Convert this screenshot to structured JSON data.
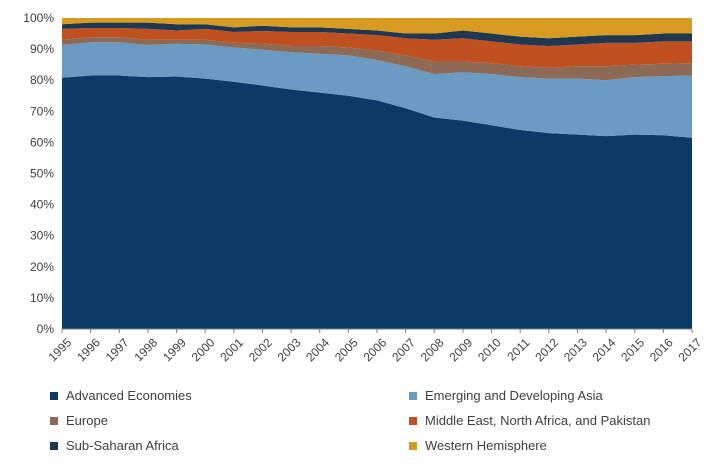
{
  "chart_data": {
    "type": "area",
    "stacked": true,
    "x": [
      "1995",
      "1996",
      "1997",
      "1998",
      "1999",
      "2000",
      "2001",
      "2002",
      "2003",
      "2004",
      "2005",
      "2006",
      "2007",
      "2008",
      "2009",
      "2010",
      "2011",
      "2012",
      "2013",
      "2014",
      "2015",
      "2016",
      "2017"
    ],
    "ylim": [
      0,
      100
    ],
    "yticks": [
      "0%",
      "10%",
      "20%",
      "30%",
      "40%",
      "50%",
      "60%",
      "70%",
      "80%",
      "90%",
      "100%"
    ],
    "grid": false,
    "legend_position": "bottom",
    "series": [
      {
        "name": "Advanced Economies",
        "color": "#0b3a66",
        "values": [
          80.8,
          81.5,
          81.5,
          81.0,
          81.2,
          80.5,
          79.5,
          78.3,
          77.0,
          76.0,
          75.0,
          73.5,
          71.0,
          68.0,
          67.0,
          65.5,
          64.0,
          63.0,
          62.5,
          62.0,
          62.5,
          62.3,
          61.5
        ]
      },
      {
        "name": "Emerging and Developing Asia",
        "color": "#6b9bc3",
        "values": [
          10.5,
          10.7,
          10.7,
          10.3,
          10.5,
          11.0,
          11.0,
          11.5,
          12.0,
          12.5,
          13.0,
          13.0,
          13.5,
          14.0,
          15.5,
          16.5,
          17.0,
          17.5,
          18.0,
          18.0,
          18.5,
          19.0,
          20.0
        ]
      },
      {
        "name": "Europe",
        "color": "#8c6a55",
        "values": [
          1.7,
          1.6,
          1.6,
          1.7,
          1.3,
          1.5,
          1.5,
          2.0,
          2.0,
          2.5,
          2.5,
          3.0,
          3.5,
          4.0,
          3.5,
          3.5,
          3.5,
          3.5,
          4.0,
          4.5,
          4.0,
          4.0,
          4.0
        ]
      },
      {
        "name": "Middle East, North Africa, and Pakistan",
        "color": "#c0501f",
        "values": [
          3.5,
          3.0,
          3.0,
          3.5,
          3.0,
          3.5,
          3.5,
          4.0,
          4.5,
          4.5,
          4.5,
          5.0,
          5.5,
          7.0,
          7.5,
          7.0,
          7.0,
          7.0,
          7.0,
          7.5,
          7.0,
          7.2,
          7.0
        ]
      },
      {
        "name": "Sub-Saharan Africa",
        "color": "#1f3750",
        "values": [
          1.5,
          1.7,
          1.7,
          2.0,
          2.0,
          1.5,
          1.5,
          1.7,
          1.5,
          1.5,
          1.5,
          1.5,
          1.5,
          2.0,
          2.5,
          2.5,
          2.5,
          2.5,
          2.5,
          2.5,
          2.5,
          2.5,
          2.5
        ]
      },
      {
        "name": "Western Hemisphere",
        "color": "#d89b22",
        "values": [
          2.0,
          1.5,
          1.5,
          1.5,
          2.0,
          2.0,
          3.0,
          2.5,
          3.0,
          3.0,
          3.5,
          4.0,
          5.0,
          5.0,
          4.0,
          5.0,
          6.0,
          6.5,
          6.0,
          5.5,
          5.5,
          5.0,
          5.0
        ]
      }
    ]
  }
}
